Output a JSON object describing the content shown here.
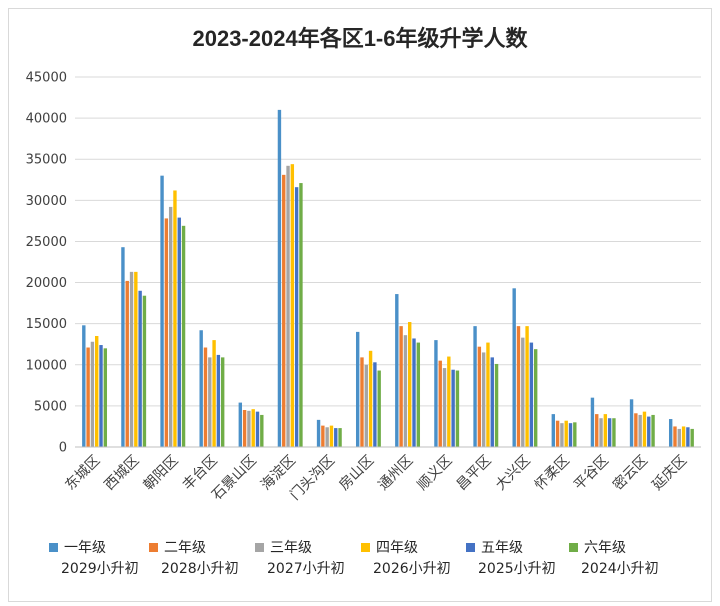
{
  "chart_data": {
    "type": "bar",
    "title": "2023-2024年各区1-6年级升学人数",
    "ylim": [
      0,
      45000
    ],
    "yticks": [
      0,
      5000,
      10000,
      15000,
      20000,
      25000,
      30000,
      35000,
      40000,
      45000
    ],
    "grid": true,
    "legend_position": "bottom",
    "categories": [
      "东城区",
      "西城区",
      "朝阳区",
      "丰台区",
      "石景山区",
      "海淀区",
      "门头沟区",
      "房山区",
      "通州区",
      "顺义区",
      "昌平区",
      "大兴区",
      "怀柔区",
      "平谷区",
      "密云区",
      "延庆区"
    ],
    "series": [
      {
        "name": "一年级",
        "sub": "2029小升初",
        "color": "#4a90c8",
        "values": [
          14800,
          24300,
          33000,
          14200,
          5400,
          41000,
          3300,
          14000,
          18600,
          13000,
          14700,
          19300,
          4000,
          6000,
          5800,
          3400
        ]
      },
      {
        "name": "二年级",
        "sub": "2028小升初",
        "color": "#ed7d31",
        "values": [
          12100,
          20200,
          27800,
          12100,
          4500,
          33100,
          2600,
          10900,
          14700,
          10500,
          12200,
          14700,
          3200,
          4000,
          4100,
          2500
        ]
      },
      {
        "name": "三年级",
        "sub": "2027小升初",
        "color": "#a5a5a5",
        "values": [
          12800,
          21300,
          29200,
          10900,
          4400,
          34200,
          2400,
          10000,
          13600,
          9600,
          11500,
          13300,
          2900,
          3500,
          3900,
          2200
        ]
      },
      {
        "name": "四年级",
        "sub": "2026小升初",
        "color": "#ffc000",
        "values": [
          13500,
          21300,
          31200,
          13000,
          4600,
          34400,
          2600,
          11700,
          15200,
          11000,
          12700,
          14700,
          3200,
          4000,
          4300,
          2500
        ]
      },
      {
        "name": "五年级",
        "sub": "2025小升初",
        "color": "#4472c4",
        "values": [
          12400,
          19000,
          27900,
          11200,
          4300,
          31600,
          2300,
          10300,
          13200,
          9400,
          10900,
          12700,
          2900,
          3500,
          3700,
          2400
        ]
      },
      {
        "name": "六年级",
        "sub": "2024小升初",
        "color": "#70ad47",
        "values": [
          12000,
          18400,
          26900,
          10900,
          3900,
          32100,
          2300,
          9300,
          12700,
          9300,
          10100,
          11900,
          3000,
          3500,
          3900,
          2200
        ]
      }
    ]
  }
}
